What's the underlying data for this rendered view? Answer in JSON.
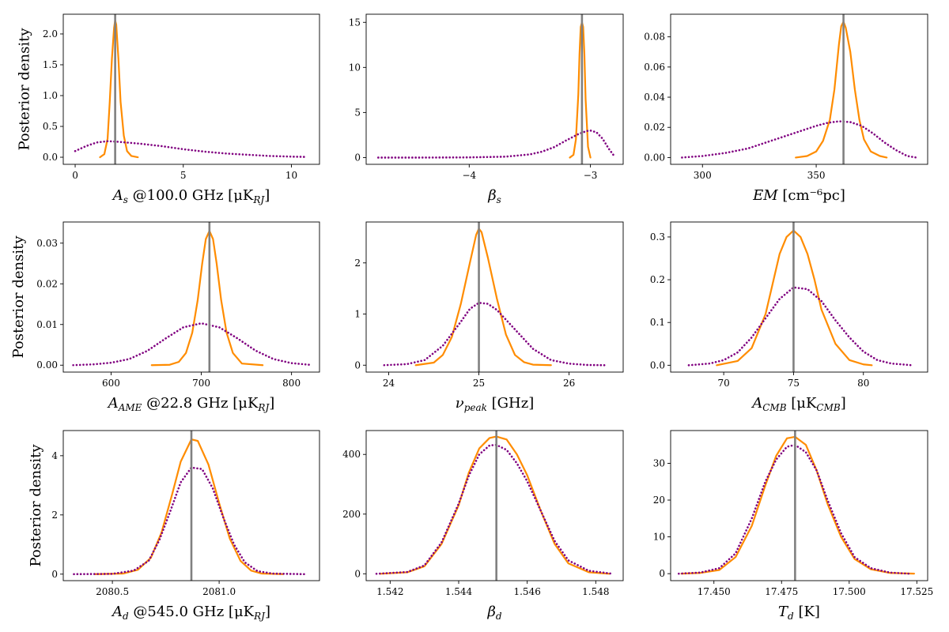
{
  "figure": {
    "ylabel": "Posterior density"
  },
  "chart_data": [
    {
      "type": "line",
      "xlabel": "A_s @100.0 GHz [μK_RJ]",
      "ylabel": "Posterior density",
      "xlim": [
        -0.55,
        11.3
      ],
      "ylim": [
        -0.115,
        2.32
      ],
      "xticks": [
        0,
        5,
        10
      ],
      "yticks": [
        0.0,
        0.5,
        1.0,
        1.5,
        2.0
      ],
      "true_value": 1.85,
      "series": [
        {
          "style": "solid",
          "color": "#ff8c00",
          "x": [
            1.15,
            1.35,
            1.5,
            1.6,
            1.7,
            1.8,
            1.85,
            1.9,
            2.0,
            2.1,
            2.25,
            2.4,
            2.6,
            2.9
          ],
          "y": [
            0.0,
            0.05,
            0.3,
            0.9,
            1.6,
            2.1,
            2.22,
            2.15,
            1.6,
            0.9,
            0.35,
            0.1,
            0.02,
            0.0
          ]
        },
        {
          "style": "dotted",
          "color": "#800080",
          "x": [
            0,
            0.5,
            1.0,
            1.5,
            2.0,
            3.0,
            4.0,
            5.0,
            6.0,
            7.0,
            8.0,
            9.0,
            10.0,
            10.7
          ],
          "y": [
            0.1,
            0.18,
            0.24,
            0.26,
            0.25,
            0.22,
            0.18,
            0.13,
            0.09,
            0.06,
            0.04,
            0.02,
            0.01,
            0.005
          ]
        }
      ]
    },
    {
      "type": "line",
      "xlabel": "β_s",
      "ylabel": "",
      "xlim": [
        -4.85,
        -2.73
      ],
      "ylim": [
        -0.75,
        15.9
      ],
      "xticks": [
        -4,
        -3
      ],
      "yticks": [
        0,
        5,
        10,
        15
      ],
      "true_value": -3.07,
      "series": [
        {
          "style": "solid",
          "color": "#ff8c00",
          "x": [
            -3.17,
            -3.14,
            -3.12,
            -3.1,
            -3.09,
            -3.08,
            -3.07,
            -3.06,
            -3.05,
            -3.04,
            -3.02,
            -3.0
          ],
          "y": [
            0.0,
            0.3,
            2.0,
            7.0,
            11.5,
            14.5,
            15.0,
            14.5,
            11.5,
            6.5,
            1.2,
            0.0
          ]
        },
        {
          "style": "dotted",
          "color": "#800080",
          "x": [
            -4.75,
            -4.4,
            -4.0,
            -3.7,
            -3.5,
            -3.4,
            -3.3,
            -3.2,
            -3.1,
            -3.03,
            -3.0,
            -2.95,
            -2.9,
            -2.85,
            -2.8
          ],
          "y": [
            0.0,
            0.0,
            0.02,
            0.1,
            0.35,
            0.65,
            1.15,
            1.9,
            2.6,
            2.95,
            3.0,
            2.8,
            2.1,
            1.0,
            0.1
          ]
        }
      ]
    },
    {
      "type": "line",
      "xlabel": "EM [cm⁻⁶pc]",
      "ylabel": "",
      "xlim": [
        286,
        399
      ],
      "ylim": [
        -0.0045,
        0.095
      ],
      "xticks": [
        300,
        350
      ],
      "yticks": [
        0.0,
        0.02,
        0.04,
        0.06,
        0.08
      ],
      "true_value": 362,
      "series": [
        {
          "style": "solid",
          "color": "#ff8c00",
          "x": [
            341,
            346,
            350,
            353,
            356,
            358,
            360,
            361,
            362,
            363,
            365,
            367,
            369,
            371,
            374,
            378,
            381
          ],
          "y": [
            0.0,
            0.001,
            0.004,
            0.011,
            0.025,
            0.045,
            0.075,
            0.087,
            0.09,
            0.086,
            0.07,
            0.045,
            0.025,
            0.012,
            0.004,
            0.001,
            0.0
          ]
        },
        {
          "style": "dotted",
          "color": "#800080",
          "x": [
            291,
            300,
            310,
            320,
            330,
            340,
            350,
            355,
            360,
            365,
            370,
            375,
            380,
            385,
            390,
            394
          ],
          "y": [
            0.0,
            0.001,
            0.003,
            0.006,
            0.011,
            0.016,
            0.021,
            0.023,
            0.024,
            0.0235,
            0.021,
            0.016,
            0.01,
            0.005,
            0.001,
            0.0
          ]
        }
      ]
    },
    {
      "type": "line",
      "xlabel": "A_AME @22.8 GHz [μK_RJ]",
      "ylabel": "Posterior density",
      "xlim": [
        547,
        831
      ],
      "ylim": [
        -0.0017,
        0.0352
      ],
      "xticks": [
        600,
        700,
        800
      ],
      "yticks": [
        0.0,
        0.01,
        0.02,
        0.03
      ],
      "true_value": 709,
      "series": [
        {
          "style": "solid",
          "color": "#ff8c00",
          "x": [
            645,
            665,
            675,
            683,
            690,
            696,
            701,
            705,
            709,
            713,
            717,
            722,
            728,
            735,
            745,
            768
          ],
          "y": [
            0.0,
            0.0001,
            0.0008,
            0.003,
            0.008,
            0.016,
            0.025,
            0.031,
            0.033,
            0.031,
            0.025,
            0.016,
            0.008,
            0.003,
            0.0004,
            0.0
          ]
        },
        {
          "style": "dotted",
          "color": "#800080",
          "x": [
            558,
            580,
            600,
            620,
            640,
            660,
            680,
            700,
            720,
            740,
            760,
            780,
            800,
            820
          ],
          "y": [
            0.0,
            0.0002,
            0.0006,
            0.0015,
            0.0035,
            0.0065,
            0.0093,
            0.0103,
            0.0093,
            0.0066,
            0.0036,
            0.0015,
            0.0005,
            0.0001
          ]
        }
      ]
    },
    {
      "type": "line",
      "xlabel": "ν_peak [GHz]",
      "ylabel": "",
      "xlim": [
        23.75,
        26.6
      ],
      "ylim": [
        -0.135,
        2.8
      ],
      "xticks": [
        24,
        25,
        26
      ],
      "yticks": [
        0,
        1,
        2
      ],
      "true_value": 25.0,
      "series": [
        {
          "style": "solid",
          "color": "#ff8c00",
          "x": [
            24.3,
            24.5,
            24.6,
            24.7,
            24.8,
            24.9,
            24.97,
            25.0,
            25.03,
            25.1,
            25.2,
            25.3,
            25.4,
            25.5,
            25.6,
            25.8
          ],
          "y": [
            0.0,
            0.05,
            0.2,
            0.55,
            1.2,
            2.0,
            2.55,
            2.67,
            2.6,
            2.1,
            1.3,
            0.6,
            0.2,
            0.06,
            0.01,
            0.0
          ]
        },
        {
          "style": "dotted",
          "color": "#800080",
          "x": [
            23.95,
            24.2,
            24.4,
            24.6,
            24.8,
            24.9,
            25.0,
            25.1,
            25.2,
            25.4,
            25.6,
            25.8,
            26.0,
            26.2,
            26.4
          ],
          "y": [
            0.0,
            0.02,
            0.1,
            0.38,
            0.85,
            1.1,
            1.22,
            1.2,
            1.08,
            0.7,
            0.32,
            0.1,
            0.03,
            0.005,
            0.0
          ]
        }
      ]
    },
    {
      "type": "line",
      "xlabel": "A_CMB [μK_CMB]",
      "ylabel": "",
      "xlim": [
        66.2,
        84.6
      ],
      "ylim": [
        -0.016,
        0.335
      ],
      "xticks": [
        70,
        75,
        80
      ],
      "yticks": [
        0.0,
        0.1,
        0.2,
        0.3
      ],
      "true_value": 75.0,
      "series": [
        {
          "style": "solid",
          "color": "#ff8c00",
          "x": [
            69.5,
            71,
            72,
            73,
            73.5,
            74,
            74.5,
            75,
            75.5,
            76,
            76.5,
            77,
            78,
            79,
            80,
            80.6
          ],
          "y": [
            0.0,
            0.01,
            0.04,
            0.12,
            0.19,
            0.26,
            0.3,
            0.315,
            0.3,
            0.26,
            0.2,
            0.13,
            0.05,
            0.012,
            0.002,
            0.0
          ]
        },
        {
          "style": "dotted",
          "color": "#800080",
          "x": [
            67.5,
            69,
            70,
            71,
            72,
            73,
            74,
            75,
            76,
            77,
            78,
            79,
            80,
            81,
            82,
            83.5
          ],
          "y": [
            0.0,
            0.004,
            0.012,
            0.03,
            0.065,
            0.11,
            0.155,
            0.182,
            0.178,
            0.15,
            0.105,
            0.065,
            0.032,
            0.012,
            0.004,
            0.0
          ]
        }
      ]
    },
    {
      "type": "line",
      "xlabel": "A_d @545.0 GHz [μK_RJ]",
      "ylabel": "Posterior density",
      "xlim": [
        2080.27,
        2081.47
      ],
      "ylim": [
        -0.22,
        4.85
      ],
      "xticks": [
        2080.5,
        2081.0
      ],
      "xtick_labels": [
        "2080.5",
        "2081.0"
      ],
      "yticks": [
        0,
        2,
        4
      ],
      "true_value": 2080.87,
      "series": [
        {
          "style": "solid",
          "color": "#ff8c00",
          "x": [
            2080.42,
            2080.55,
            2080.62,
            2080.68,
            2080.73,
            2080.78,
            2080.82,
            2080.87,
            2080.9,
            2080.95,
            2081.0,
            2081.05,
            2081.1,
            2081.15,
            2081.2,
            2081.3
          ],
          "y": [
            0.0,
            0.02,
            0.15,
            0.55,
            1.4,
            2.7,
            3.8,
            4.55,
            4.5,
            3.7,
            2.4,
            1.2,
            0.45,
            0.12,
            0.02,
            0.0
          ]
        },
        {
          "style": "dotted",
          "color": "#800080",
          "x": [
            2080.32,
            2080.5,
            2080.6,
            2080.67,
            2080.72,
            2080.77,
            2080.82,
            2080.87,
            2080.92,
            2080.97,
            2081.02,
            2081.07,
            2081.12,
            2081.18,
            2081.25,
            2081.4
          ],
          "y": [
            0.0,
            0.01,
            0.12,
            0.45,
            1.15,
            2.1,
            3.1,
            3.6,
            3.55,
            2.9,
            1.9,
            1.0,
            0.4,
            0.1,
            0.02,
            0.0
          ]
        }
      ]
    },
    {
      "type": "line",
      "xlabel": "β_d",
      "ylabel": "",
      "xlim": [
        1.5413,
        1.5488
      ],
      "ylim": [
        -23,
        480
      ],
      "xticks": [
        1.542,
        1.544,
        1.546,
        1.548
      ],
      "xtick_labels": [
        "1.542",
        "1.544",
        "1.546",
        "1.548"
      ],
      "yticks": [
        0,
        200,
        400
      ],
      "true_value": 1.5451,
      "series": [
        {
          "style": "solid",
          "color": "#ff8c00",
          "x": [
            1.5417,
            1.5425,
            1.543,
            1.5435,
            1.544,
            1.5443,
            1.5446,
            1.5449,
            1.5451,
            1.5454,
            1.5457,
            1.546,
            1.5464,
            1.5468,
            1.5472,
            1.5478,
            1.5484
          ],
          "y": [
            0.0,
            5,
            25,
            100,
            230,
            340,
            420,
            455,
            460,
            450,
            400,
            330,
            210,
            100,
            35,
            5,
            0.0
          ]
        },
        {
          "style": "dotted",
          "color": "#800080",
          "x": [
            1.5416,
            1.5425,
            1.543,
            1.5435,
            1.544,
            1.5443,
            1.5446,
            1.5449,
            1.5451,
            1.5454,
            1.5457,
            1.546,
            1.5464,
            1.5468,
            1.5472,
            1.5478,
            1.5485
          ],
          "y": [
            0.0,
            6,
            28,
            105,
            235,
            330,
            400,
            430,
            432,
            415,
            370,
            310,
            210,
            110,
            45,
            10,
            0.0
          ]
        }
      ]
    },
    {
      "type": "line",
      "xlabel": "T_d [K]",
      "ylabel": "",
      "xlim": [
        17.434,
        17.529
      ],
      "ylim": [
        -1.9,
        38.9
      ],
      "xticks": [
        17.45,
        17.475,
        17.5,
        17.525
      ],
      "xtick_labels": [
        "17.450",
        "17.475",
        "17.500",
        "17.525"
      ],
      "yticks": [
        0,
        10,
        20,
        30
      ],
      "true_value": 17.48,
      "series": [
        {
          "style": "solid",
          "color": "#ff8c00",
          "x": [
            17.438,
            17.445,
            17.452,
            17.458,
            17.464,
            17.469,
            17.473,
            17.477,
            17.48,
            17.484,
            17.488,
            17.492,
            17.497,
            17.502,
            17.508,
            17.515,
            17.524
          ],
          "y": [
            0.0,
            0.2,
            1.0,
            4.5,
            13,
            24,
            32,
            36.8,
            37.2,
            35,
            28,
            19,
            10,
            4,
            1.2,
            0.2,
            0.0
          ]
        },
        {
          "style": "dotted",
          "color": "#800080",
          "x": [
            17.437,
            17.445,
            17.452,
            17.458,
            17.464,
            17.469,
            17.473,
            17.477,
            17.48,
            17.484,
            17.488,
            17.492,
            17.497,
            17.502,
            17.508,
            17.515,
            17.522
          ],
          "y": [
            0.0,
            0.3,
            1.5,
            5.5,
            15,
            25,
            31,
            34.5,
            35,
            33,
            28,
            20,
            11,
            4.5,
            1.5,
            0.3,
            0.0
          ]
        }
      ]
    }
  ]
}
